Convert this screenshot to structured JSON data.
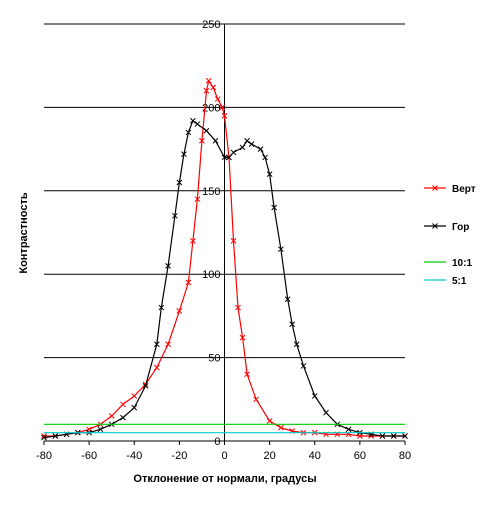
{
  "chart_data": {
    "type": "line",
    "title": "",
    "xlabel": "Отклонение от нормали, градусы",
    "ylabel": "Контрастность",
    "xlim": [
      -80,
      80
    ],
    "ylim": [
      0,
      250
    ],
    "x_ticks": [
      -80,
      -60,
      -40,
      -20,
      0,
      20,
      40,
      60,
      80
    ],
    "y_ticks": [
      0,
      50,
      100,
      150,
      200,
      250
    ],
    "grid": "horizontal major gridlines; vertical line at x=0",
    "legend_position": "right",
    "series": [
      {
        "name": "Верт",
        "color": "#ff0000",
        "marker": "x",
        "points": [
          [
            -80,
            3
          ],
          [
            -75,
            3
          ],
          [
            -70,
            4
          ],
          [
            -65,
            5
          ],
          [
            -60,
            7
          ],
          [
            -55,
            10
          ],
          [
            -50,
            15
          ],
          [
            -45,
            22
          ],
          [
            -40,
            27
          ],
          [
            -35,
            34
          ],
          [
            -30,
            44
          ],
          [
            -25,
            58
          ],
          [
            -20,
            78
          ],
          [
            -16,
            95
          ],
          [
            -14,
            120
          ],
          [
            -12,
            145
          ],
          [
            -10,
            180
          ],
          [
            -8,
            210
          ],
          [
            -7,
            216
          ],
          [
            -5,
            212
          ],
          [
            -3,
            205
          ],
          [
            -1,
            200
          ],
          [
            0,
            195
          ],
          [
            2,
            170
          ],
          [
            4,
            120
          ],
          [
            6,
            80
          ],
          [
            8,
            62
          ],
          [
            10,
            40
          ],
          [
            14,
            25
          ],
          [
            20,
            12
          ],
          [
            25,
            8
          ],
          [
            30,
            6
          ],
          [
            35,
            5
          ],
          [
            40,
            5
          ],
          [
            45,
            4
          ],
          [
            50,
            4
          ],
          [
            55,
            4
          ],
          [
            60,
            3
          ],
          [
            65,
            3
          ],
          [
            70,
            3
          ],
          [
            75,
            3
          ],
          [
            80,
            3
          ]
        ]
      },
      {
        "name": "Гор",
        "color": "#000000",
        "marker": "x",
        "points": [
          [
            -80,
            2
          ],
          [
            -75,
            3
          ],
          [
            -70,
            4
          ],
          [
            -65,
            5
          ],
          [
            -60,
            5
          ],
          [
            -55,
            7
          ],
          [
            -50,
            10
          ],
          [
            -45,
            14
          ],
          [
            -40,
            20
          ],
          [
            -35,
            33
          ],
          [
            -30,
            58
          ],
          [
            -28,
            80
          ],
          [
            -25,
            105
          ],
          [
            -22,
            135
          ],
          [
            -20,
            155
          ],
          [
            -18,
            172
          ],
          [
            -16,
            185
          ],
          [
            -14,
            192
          ],
          [
            -12,
            190
          ],
          [
            -8,
            186
          ],
          [
            -4,
            180
          ],
          [
            0,
            170
          ],
          [
            2,
            170
          ],
          [
            4,
            173
          ],
          [
            8,
            176
          ],
          [
            10,
            180
          ],
          [
            12,
            178
          ],
          [
            16,
            175
          ],
          [
            18,
            170
          ],
          [
            20,
            160
          ],
          [
            22,
            140
          ],
          [
            25,
            115
          ],
          [
            28,
            85
          ],
          [
            30,
            70
          ],
          [
            32,
            58
          ],
          [
            35,
            45
          ],
          [
            40,
            27
          ],
          [
            45,
            17
          ],
          [
            50,
            10
          ],
          [
            55,
            7
          ],
          [
            60,
            5
          ],
          [
            65,
            4
          ],
          [
            70,
            3
          ],
          [
            75,
            3
          ],
          [
            80,
            3
          ]
        ]
      },
      {
        "name": "10:1",
        "color": "#00cc00",
        "marker": "none",
        "points": [
          [
            -80,
            10
          ],
          [
            80,
            10
          ]
        ]
      },
      {
        "name": "5:1",
        "color": "#00cccc",
        "marker": "none",
        "points": [
          [
            -80,
            5
          ],
          [
            80,
            5
          ]
        ]
      }
    ]
  }
}
